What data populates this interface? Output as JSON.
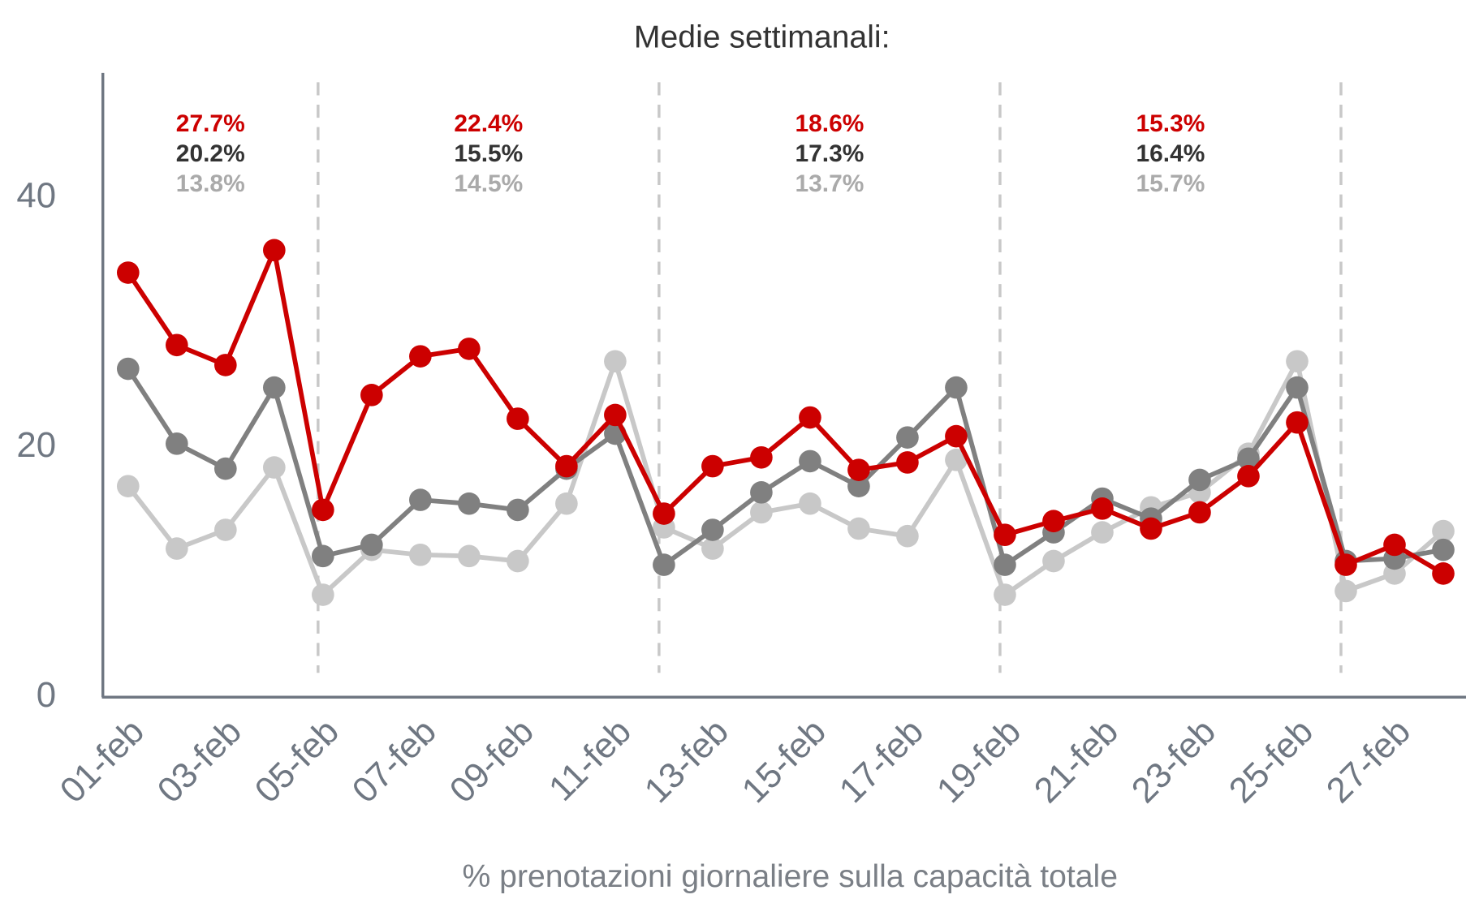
{
  "chart_data": {
    "type": "line",
    "title": "Medie settimanali:",
    "x_label": "% prenotazioni giornaliere sulla capacità totale",
    "categories": [
      "01-feb",
      null,
      "03-feb",
      null,
      "05-feb",
      null,
      "07-feb",
      null,
      "09-feb",
      null,
      "11-feb",
      null,
      "13-feb",
      null,
      "15-feb",
      null,
      "17-feb",
      null,
      "19-feb",
      null,
      "21-feb",
      null,
      "23-feb",
      null,
      "25-feb",
      null,
      "27-feb",
      null
    ],
    "series": [
      {
        "color": "#cc0000",
        "values": [
          34.0,
          28.2,
          26.6,
          35.8,
          15.0,
          24.2,
          27.3,
          27.9,
          22.3,
          18.5,
          22.6,
          14.7,
          18.5,
          19.2,
          22.4,
          18.2,
          18.8,
          20.9,
          13.0,
          14.1,
          15.1,
          13.5,
          14.8,
          17.7,
          22.0,
          10.6,
          12.2,
          9.9
        ]
      },
      {
        "color": "#808080",
        "values": [
          26.3,
          20.3,
          18.3,
          24.8,
          11.3,
          12.2,
          15.8,
          15.5,
          15.0,
          18.3,
          21.1,
          10.6,
          13.4,
          16.4,
          18.9,
          16.9,
          20.8,
          24.8,
          10.6,
          13.2,
          15.9,
          14.3,
          17.4,
          19.1,
          24.8,
          10.9,
          11.1,
          11.8
        ]
      },
      {
        "color": "#c8c8c8",
        "values": [
          16.9,
          11.9,
          13.4,
          18.4,
          8.2,
          11.8,
          11.4,
          11.3,
          10.9,
          15.5,
          26.9,
          13.6,
          11.9,
          14.8,
          15.5,
          13.5,
          12.9,
          19.0,
          8.2,
          10.9,
          13.2,
          15.2,
          16.4,
          19.5,
          26.9,
          8.5,
          9.9,
          13.3
        ]
      }
    ],
    "annotations": [
      [
        "27.7%",
        "20.2%",
        "13.8%"
      ],
      [
        "22.4%",
        "15.5%",
        "14.5%"
      ],
      [
        "18.6%",
        "17.3%",
        "13.7%"
      ],
      [
        "15.3%",
        "16.4%",
        "15.7%"
      ]
    ],
    "ylim": [
      0,
      50
    ],
    "yticks": [
      0,
      20,
      40
    ],
    "grid": false
  }
}
